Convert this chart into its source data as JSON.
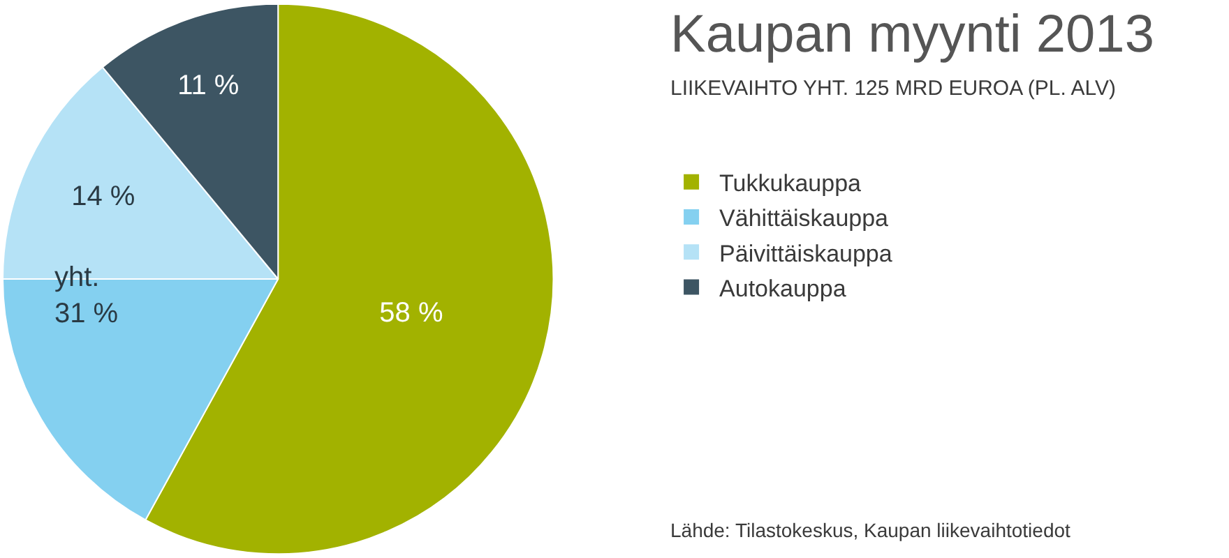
{
  "chart_data": {
    "type": "pie",
    "title": "Kaupan myynti 2013",
    "subtitle": "LIIKEVAIHTO YHT. 125 MRD EUROA (PL. ALV)",
    "categories": [
      "Tukkukauppa",
      "Vähittäiskauppa",
      "Päivittäiskauppa",
      "Autokauppa"
    ],
    "values": [
      58,
      17,
      14,
      11
    ],
    "colors": [
      "#a2b200",
      "#84d0f0",
      "#b5e2f6",
      "#3d5563"
    ],
    "value_labels": [
      "58 %",
      null,
      "14 %",
      "11 %"
    ],
    "legend": "right",
    "annotations": [
      "yht.\n31 %",
      "Lähde: Tilastokeskus, Kaupan liikevaihtotiedot"
    ]
  }
}
